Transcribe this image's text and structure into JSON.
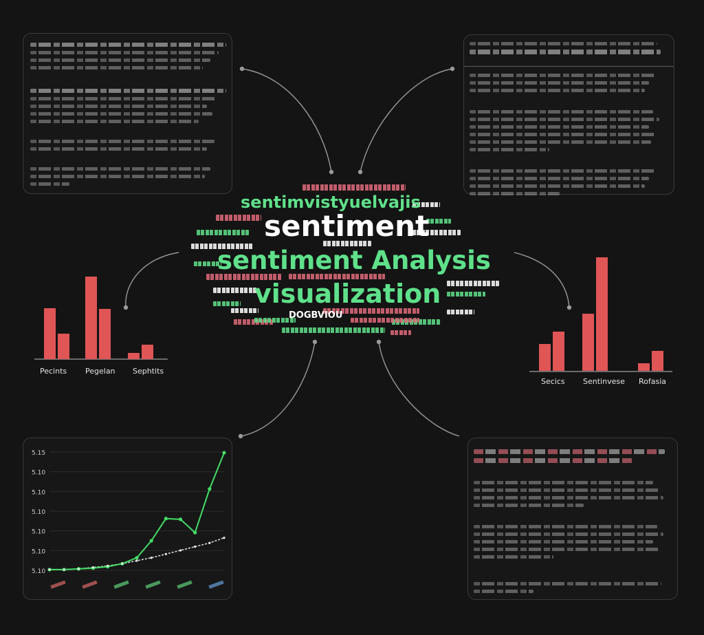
{
  "word_cloud": {
    "main_words": [
      {
        "text": "sentiment",
        "color": "#ffffff"
      },
      {
        "text": "sentiment Analysis",
        "color": "#5fe08a"
      },
      {
        "text": "visualization",
        "color": "#5fe08a"
      },
      {
        "text": "sentimvistyuelvajis",
        "color": "#5fe08a"
      },
      {
        "text": "DOGBVIOU",
        "color": "#ffffff"
      }
    ]
  },
  "left_bar_chart": {
    "labels": [
      "Pecints",
      "Pegelan",
      "Sephtits"
    ]
  },
  "right_bar_chart": {
    "labels": [
      "Secics",
      "Sentinvese",
      "Rofasia"
    ]
  },
  "line_chart": {
    "y_ticks": [
      "5.15",
      "5.10",
      "5.10",
      "5.10",
      "5.10",
      "5.10",
      "5.10"
    ]
  },
  "chart_data": [
    {
      "type": "bar",
      "categories": [
        "Pecints",
        "Pegelan",
        "Sephtits"
      ],
      "series": [
        {
          "values": [
            74,
            120,
            9
          ]
        },
        {
          "values": [
            37,
            73,
            21
          ]
        }
      ],
      "colors": [
        "#e05555"
      ]
    },
    {
      "type": "bar",
      "categories": [
        "Secics",
        "Sentinvese",
        "Rofasia"
      ],
      "series": [
        {
          "values": [
            39,
            83,
            11
          ]
        },
        {
          "values": [
            57,
            165,
            29
          ]
        }
      ],
      "colors": [
        "#e05555"
      ]
    },
    {
      "type": "line",
      "series": [
        {
          "values": [
            1,
            1,
            2,
            3,
            5,
            9,
            17,
            40,
            70,
            69,
            51,
            110,
            159
          ]
        },
        {
          "values": [
            1,
            1,
            2,
            4,
            6,
            9,
            13,
            17,
            22,
            27,
            32,
            37,
            44
          ]
        }
      ],
      "colors": [
        "#44dd66",
        "#dddddd"
      ]
    }
  ]
}
